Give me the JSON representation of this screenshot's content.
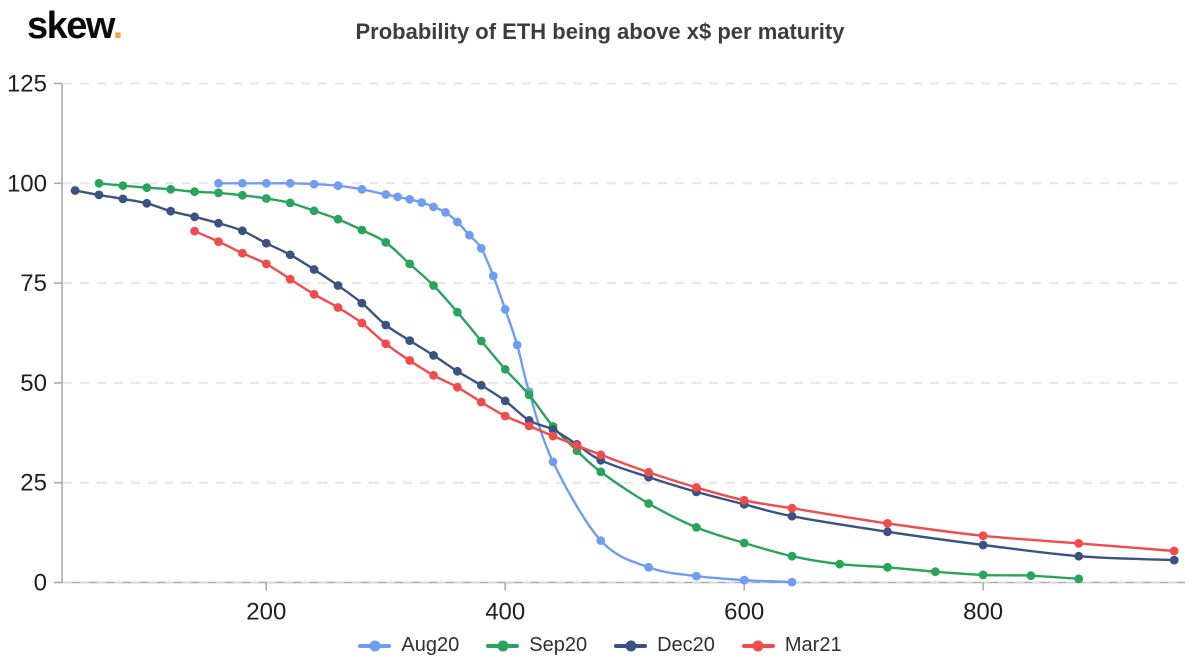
{
  "header": {
    "logo_text": "skew",
    "logo_dot": ".",
    "title": "Probability of ETH being above x$ per maturity"
  },
  "chart_data": {
    "type": "line",
    "title": "Probability of ETH being above x$ per maturity",
    "xlabel": "",
    "ylabel": "",
    "grid": "horizontal-dashed",
    "legend_position": "bottom",
    "x_axis": {
      "min": 29,
      "max": 969,
      "ticks": [
        200,
        400,
        600,
        800
      ]
    },
    "y_axis": {
      "min": 0,
      "max": 125,
      "ticks": [
        0,
        25,
        50,
        75,
        100,
        125
      ]
    },
    "series": [
      {
        "name": "Aug20",
        "color": "#6F9DF1",
        "points": [
          [
            160,
            100
          ],
          [
            180,
            100
          ],
          [
            200,
            100
          ],
          [
            220,
            100
          ],
          [
            240,
            99.8
          ],
          [
            260,
            99.4
          ],
          [
            280,
            98.5
          ],
          [
            300,
            97.2
          ],
          [
            310,
            96.6
          ],
          [
            320,
            96.0
          ],
          [
            330,
            95.2
          ],
          [
            340,
            94.1
          ],
          [
            350,
            92.7
          ],
          [
            360,
            90.3
          ],
          [
            370,
            87.0
          ],
          [
            380,
            83.7
          ],
          [
            390,
            76.8
          ],
          [
            400,
            68.4
          ],
          [
            410,
            59.5
          ],
          [
            420,
            47.8
          ],
          [
            440,
            30.2
          ],
          [
            480,
            10.5
          ],
          [
            520,
            3.8
          ],
          [
            560,
            1.6
          ],
          [
            600,
            0.6
          ],
          [
            640,
            0.1
          ]
        ]
      },
      {
        "name": "Sep20",
        "color": "#29A45B",
        "points": [
          [
            60,
            100
          ],
          [
            80,
            99.4
          ],
          [
            100,
            98.9
          ],
          [
            120,
            98.5
          ],
          [
            140,
            97.9
          ],
          [
            160,
            97.6
          ],
          [
            180,
            97.0
          ],
          [
            200,
            96.2
          ],
          [
            220,
            95.1
          ],
          [
            240,
            93.1
          ],
          [
            260,
            91.0
          ],
          [
            280,
            88.3
          ],
          [
            300,
            85.2
          ],
          [
            320,
            79.8
          ],
          [
            340,
            74.4
          ],
          [
            360,
            67.7
          ],
          [
            380,
            60.5
          ],
          [
            400,
            53.4
          ],
          [
            420,
            47.0
          ],
          [
            440,
            39.1
          ],
          [
            460,
            33.0
          ],
          [
            480,
            27.7
          ],
          [
            520,
            19.8
          ],
          [
            560,
            13.8
          ],
          [
            600,
            9.9
          ],
          [
            640,
            6.6
          ],
          [
            680,
            4.6
          ],
          [
            720,
            3.8
          ],
          [
            760,
            2.7
          ],
          [
            800,
            1.9
          ],
          [
            840,
            1.7
          ],
          [
            880,
            0.9
          ]
        ]
      },
      {
        "name": "Dec20",
        "color": "#3A5382",
        "points": [
          [
            40,
            98.2
          ],
          [
            60,
            97.1
          ],
          [
            80,
            96.1
          ],
          [
            100,
            95.0
          ],
          [
            120,
            93.0
          ],
          [
            140,
            91.6
          ],
          [
            160,
            90.0
          ],
          [
            180,
            88.1
          ],
          [
            200,
            85.0
          ],
          [
            220,
            82.1
          ],
          [
            240,
            78.4
          ],
          [
            260,
            74.4
          ],
          [
            280,
            70.0
          ],
          [
            300,
            64.5
          ],
          [
            320,
            60.6
          ],
          [
            340,
            56.9
          ],
          [
            360,
            52.9
          ],
          [
            380,
            49.4
          ],
          [
            400,
            45.5
          ],
          [
            420,
            40.6
          ],
          [
            440,
            38.3
          ],
          [
            460,
            34.6
          ],
          [
            480,
            30.6
          ],
          [
            520,
            26.4
          ],
          [
            560,
            22.7
          ],
          [
            600,
            19.6
          ],
          [
            640,
            16.6
          ],
          [
            720,
            12.7
          ],
          [
            800,
            9.4
          ],
          [
            880,
            6.6
          ],
          [
            960,
            5.6
          ]
        ]
      },
      {
        "name": "Mar21",
        "color": "#F14B4B",
        "points": [
          [
            140,
            88.0
          ],
          [
            160,
            85.4
          ],
          [
            180,
            82.5
          ],
          [
            200,
            79.8
          ],
          [
            220,
            76.0
          ],
          [
            240,
            72.2
          ],
          [
            260,
            68.9
          ],
          [
            280,
            65.0
          ],
          [
            300,
            59.8
          ],
          [
            320,
            55.6
          ],
          [
            340,
            51.9
          ],
          [
            360,
            48.9
          ],
          [
            380,
            45.2
          ],
          [
            400,
            41.7
          ],
          [
            420,
            39.2
          ],
          [
            440,
            36.7
          ],
          [
            460,
            34.3
          ],
          [
            480,
            32.0
          ],
          [
            520,
            27.6
          ],
          [
            560,
            23.8
          ],
          [
            600,
            20.6
          ],
          [
            640,
            18.6
          ],
          [
            720,
            14.8
          ],
          [
            800,
            11.7
          ],
          [
            880,
            9.8
          ],
          [
            960,
            7.9
          ]
        ]
      }
    ],
    "style": {
      "axis_color": "#ABABAB",
      "grid_color": "#E6E6E6",
      "tick_label_color": "#1f1f1f",
      "title_color": "#3d3d3d",
      "logo_dot_color": "#F2A33C"
    }
  }
}
